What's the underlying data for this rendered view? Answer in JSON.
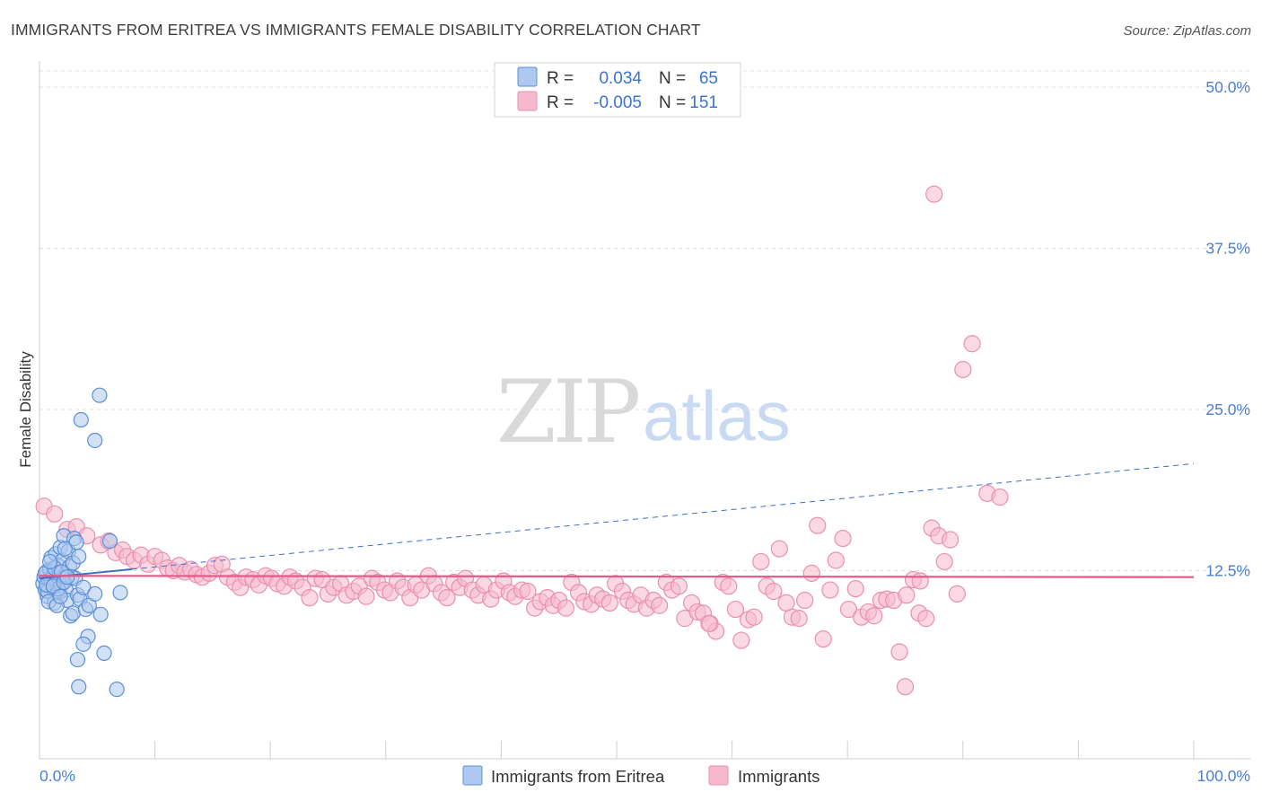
{
  "header": {
    "title": "IMMIGRANTS FROM ERITREA VS IMMIGRANTS FEMALE DISABILITY CORRELATION CHART",
    "source": "Source: ZipAtlas.com"
  },
  "watermark": {
    "zip": "ZIP",
    "atlas": "atlas"
  },
  "colors": {
    "blue_fill": "#aec8ef",
    "blue_stroke": "#5b8fd6",
    "blue_line": "#3d6fc9",
    "pink_fill": "#f6b9cc",
    "pink_stroke": "#ea8fb0",
    "pink_line": "#e8578a",
    "tick_text": "#4a7fd0",
    "grid": "#e2e2e2"
  },
  "legend": {
    "rows": [
      {
        "r_label": "R =",
        "r_value": "0.034",
        "n_label": "N =",
        "n_value": "65"
      },
      {
        "r_label": "R =",
        "r_value": "-0.005",
        "n_label": "N =",
        "n_value": "151"
      }
    ]
  },
  "chart_data": {
    "type": "scatter",
    "title": "IMMIGRANTS FROM ERITREA VS IMMIGRANTS FEMALE DISABILITY CORRELATION CHART",
    "xlabel": "",
    "ylabel": "Female Disability",
    "xlim": [
      0,
      100
    ],
    "ylim": [
      0,
      50
    ],
    "y_ticks": [
      {
        "value": 12.5,
        "label": "12.5%"
      },
      {
        "value": 25,
        "label": "25.0%"
      },
      {
        "value": 37.5,
        "label": "37.5%"
      },
      {
        "value": 50,
        "label": "50.0%"
      }
    ],
    "x_tick_labels": {
      "min": "0.0%",
      "max": "100.0%"
    },
    "grid": "horizontal dashed",
    "legend_position": "top-center",
    "series": [
      {
        "name": "Immigrants from Eritrea",
        "r": 0.034,
        "n": 65,
        "trend": {
          "x0": 0,
          "y0": 11.9,
          "x1": 100,
          "y1": 20.8,
          "solid_until": 8
        },
        "points": [
          [
            0.3,
            11.5
          ],
          [
            0.4,
            12.0
          ],
          [
            0.5,
            11.0
          ],
          [
            0.6,
            12.4
          ],
          [
            0.7,
            10.5
          ],
          [
            0.8,
            11.8
          ],
          [
            0.9,
            12.6
          ],
          [
            1.0,
            13.5
          ],
          [
            1.1,
            11.2
          ],
          [
            1.2,
            12.1
          ],
          [
            1.3,
            10.0
          ],
          [
            1.4,
            13.8
          ],
          [
            1.5,
            11.6
          ],
          [
            1.6,
            12.9
          ],
          [
            1.7,
            10.8
          ],
          [
            1.8,
            14.3
          ],
          [
            1.9,
            11.4
          ],
          [
            2.0,
            13.3
          ],
          [
            2.1,
            15.2
          ],
          [
            2.2,
            12.2
          ],
          [
            2.3,
            11.0
          ],
          [
            2.4,
            10.2
          ],
          [
            2.5,
            14.0
          ],
          [
            2.6,
            12.8
          ],
          [
            2.7,
            9.0
          ],
          [
            2.8,
            12.0
          ],
          [
            2.9,
            13.1
          ],
          [
            3.0,
            15.0
          ],
          [
            3.1,
            11.9
          ],
          [
            3.2,
            14.7
          ],
          [
            3.3,
            10.6
          ],
          [
            3.4,
            13.6
          ],
          [
            1.0,
            11.8
          ],
          [
            0.5,
            12.3
          ],
          [
            0.7,
            10.9
          ],
          [
            1.3,
            12.7
          ],
          [
            1.6,
            11.1
          ],
          [
            0.9,
            13.2
          ],
          [
            1.9,
            12.4
          ],
          [
            2.2,
            14.2
          ],
          [
            0.6,
            11.4
          ],
          [
            0.8,
            10.1
          ],
          [
            1.2,
            11.3
          ],
          [
            1.5,
            9.8
          ],
          [
            1.8,
            10.5
          ],
          [
            2.1,
            11.6
          ],
          [
            2.4,
            12.0
          ],
          [
            2.9,
            9.2
          ],
          [
            3.5,
            10.3
          ],
          [
            4.0,
            9.5
          ],
          [
            3.8,
            11.2
          ],
          [
            4.3,
            9.8
          ],
          [
            4.8,
            10.7
          ],
          [
            5.3,
            9.1
          ],
          [
            6.1,
            14.8
          ],
          [
            7.0,
            10.8
          ],
          [
            3.6,
            24.2
          ],
          [
            4.8,
            22.6
          ],
          [
            5.2,
            26.1
          ],
          [
            4.2,
            7.4
          ],
          [
            3.8,
            6.8
          ],
          [
            3.3,
            5.6
          ],
          [
            5.6,
            6.1
          ],
          [
            3.4,
            3.5
          ],
          [
            6.7,
            3.3
          ]
        ]
      },
      {
        "name": "Immigrants",
        "r": -0.005,
        "n": 151,
        "trend": {
          "x0": 0,
          "y0": 12.1,
          "x1": 100,
          "y1": 12.0
        },
        "points": [
          [
            0.4,
            17.5
          ],
          [
            1.3,
            16.9
          ],
          [
            2.4,
            15.7
          ],
          [
            3.2,
            15.9
          ],
          [
            4.1,
            15.2
          ],
          [
            5.3,
            14.5
          ],
          [
            6.0,
            14.8
          ],
          [
            6.6,
            13.9
          ],
          [
            7.2,
            14.1
          ],
          [
            7.6,
            13.6
          ],
          [
            8.2,
            13.3
          ],
          [
            8.8,
            13.7
          ],
          [
            9.4,
            13.0
          ],
          [
            10.0,
            13.6
          ],
          [
            10.6,
            13.3
          ],
          [
            11.1,
            12.7
          ],
          [
            11.6,
            12.5
          ],
          [
            12.1,
            12.9
          ],
          [
            12.6,
            12.4
          ],
          [
            13.1,
            12.6
          ],
          [
            13.6,
            12.2
          ],
          [
            14.1,
            12.0
          ],
          [
            14.7,
            12.3
          ],
          [
            15.2,
            12.9
          ],
          [
            15.8,
            13.0
          ],
          [
            16.3,
            12.0
          ],
          [
            16.9,
            11.6
          ],
          [
            17.4,
            11.2
          ],
          [
            17.9,
            12.0
          ],
          [
            18.5,
            11.8
          ],
          [
            19.0,
            11.4
          ],
          [
            19.6,
            12.1
          ],
          [
            20.1,
            11.9
          ],
          [
            20.6,
            11.5
          ],
          [
            21.2,
            11.3
          ],
          [
            21.7,
            12.0
          ],
          [
            22.2,
            11.7
          ],
          [
            22.8,
            11.2
          ],
          [
            23.4,
            10.4
          ],
          [
            23.9,
            11.9
          ],
          [
            24.5,
            11.8
          ],
          [
            25.0,
            10.7
          ],
          [
            25.5,
            11.2
          ],
          [
            26.1,
            11.5
          ],
          [
            26.6,
            10.6
          ],
          [
            27.2,
            10.9
          ],
          [
            27.7,
            11.3
          ],
          [
            28.3,
            10.5
          ],
          [
            28.8,
            11.9
          ],
          [
            29.3,
            11.6
          ],
          [
            29.9,
            11.0
          ],
          [
            30.4,
            10.8
          ],
          [
            31.0,
            11.7
          ],
          [
            31.5,
            11.2
          ],
          [
            32.1,
            10.4
          ],
          [
            32.6,
            11.4
          ],
          [
            33.1,
            11.0
          ],
          [
            33.7,
            12.1
          ],
          [
            34.2,
            11.5
          ],
          [
            34.8,
            10.8
          ],
          [
            35.3,
            10.4
          ],
          [
            35.9,
            11.6
          ],
          [
            36.4,
            11.2
          ],
          [
            36.9,
            11.9
          ],
          [
            37.5,
            11.0
          ],
          [
            38.0,
            10.6
          ],
          [
            38.5,
            11.4
          ],
          [
            39.1,
            10.3
          ],
          [
            39.6,
            11.0
          ],
          [
            40.2,
            11.7
          ],
          [
            40.7,
            10.8
          ],
          [
            41.2,
            10.5
          ],
          [
            41.8,
            11.0
          ],
          [
            42.3,
            10.9
          ],
          [
            42.9,
            9.6
          ],
          [
            43.4,
            10.1
          ],
          [
            44.0,
            10.4
          ],
          [
            44.5,
            9.8
          ],
          [
            45.0,
            10.2
          ],
          [
            45.6,
            9.6
          ],
          [
            46.1,
            11.6
          ],
          [
            46.7,
            10.8
          ],
          [
            47.2,
            10.1
          ],
          [
            47.8,
            9.9
          ],
          [
            48.3,
            10.6
          ],
          [
            48.8,
            10.3
          ],
          [
            49.4,
            10.0
          ],
          [
            49.9,
            11.5
          ],
          [
            50.5,
            10.9
          ],
          [
            51.0,
            10.2
          ],
          [
            51.5,
            9.9
          ],
          [
            52.1,
            10.6
          ],
          [
            52.6,
            9.6
          ],
          [
            53.2,
            10.2
          ],
          [
            53.7,
            9.8
          ],
          [
            54.3,
            11.6
          ],
          [
            54.8,
            11.0
          ],
          [
            55.4,
            11.3
          ],
          [
            55.9,
            8.8
          ],
          [
            56.5,
            10.0
          ],
          [
            57.0,
            9.3
          ],
          [
            57.5,
            9.2
          ],
          [
            58.1,
            8.4
          ],
          [
            58.6,
            7.8
          ],
          [
            59.2,
            11.6
          ],
          [
            59.7,
            11.3
          ],
          [
            60.3,
            9.5
          ],
          [
            60.8,
            7.1
          ],
          [
            61.4,
            8.7
          ],
          [
            61.9,
            8.9
          ],
          [
            62.5,
            13.2
          ],
          [
            63.0,
            11.3
          ],
          [
            63.6,
            10.9
          ],
          [
            64.1,
            14.2
          ],
          [
            64.7,
            10.0
          ],
          [
            65.2,
            8.9
          ],
          [
            65.8,
            8.8
          ],
          [
            66.3,
            10.2
          ],
          [
            66.9,
            12.3
          ],
          [
            67.4,
            16.0
          ],
          [
            67.9,
            7.2
          ],
          [
            68.5,
            11.0
          ],
          [
            69.0,
            13.3
          ],
          [
            69.6,
            15.0
          ],
          [
            70.1,
            9.5
          ],
          [
            70.7,
            11.1
          ],
          [
            71.2,
            8.9
          ],
          [
            71.8,
            9.3
          ],
          [
            72.3,
            9.0
          ],
          [
            72.9,
            10.2
          ],
          [
            73.4,
            10.3
          ],
          [
            74.0,
            10.2
          ],
          [
            74.5,
            6.2
          ],
          [
            75.1,
            10.6
          ],
          [
            75.7,
            11.8
          ],
          [
            76.2,
            9.2
          ],
          [
            76.8,
            8.8
          ],
          [
            77.3,
            15.8
          ],
          [
            77.9,
            15.2
          ],
          [
            78.4,
            13.2
          ],
          [
            78.9,
            14.9
          ],
          [
            79.5,
            10.7
          ],
          [
            80.0,
            28.1
          ],
          [
            80.8,
            30.1
          ],
          [
            77.5,
            41.7
          ],
          [
            82.1,
            18.5
          ],
          [
            83.2,
            18.2
          ],
          [
            76.3,
            11.7
          ],
          [
            58.0,
            8.4
          ],
          [
            75.0,
            3.5
          ]
        ]
      }
    ]
  },
  "bottom_legend": [
    {
      "label": "Immigrants from Eritrea"
    },
    {
      "label": "Immigrants"
    }
  ]
}
